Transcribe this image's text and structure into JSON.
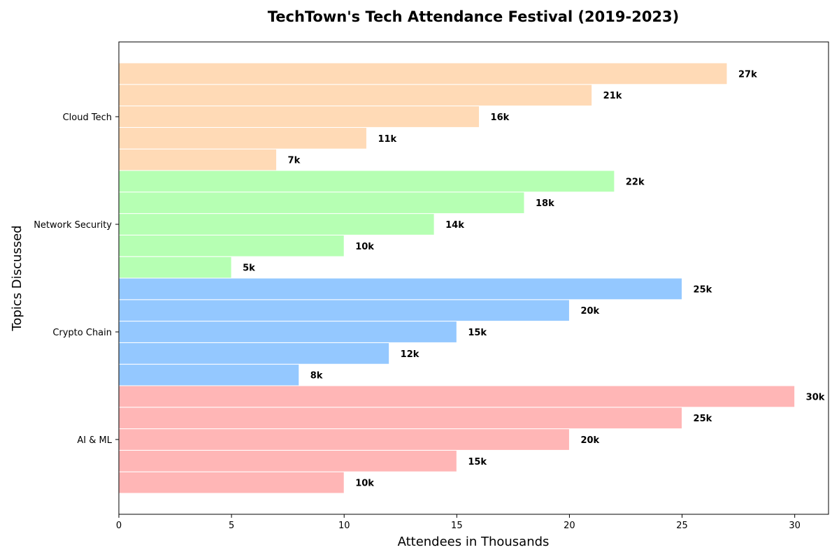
{
  "chart_data": {
    "type": "bar",
    "orientation": "horizontal",
    "title": "TechTown's Tech Attendance Festival (2019-2023)",
    "xlabel": "Attendees in Thousands",
    "ylabel": "Topics Discussed",
    "xlim": [
      0,
      31.5
    ],
    "x_ticks": [
      0,
      5,
      10,
      15,
      20,
      25,
      30
    ],
    "grid": false,
    "legend": "none",
    "categories": [
      "AI & ML",
      "Crypto Chain",
      "Network Security",
      "Cloud Tech"
    ],
    "groups": [
      {
        "category": "AI & ML",
        "color": "#FFB6B6",
        "values": [
          10,
          15,
          20,
          25,
          30
        ],
        "labels": [
          "10k",
          "15k",
          "20k",
          "25k",
          "30k"
        ]
      },
      {
        "category": "Crypto Chain",
        "color": "#94C8FF",
        "values": [
          8,
          12,
          15,
          20,
          25
        ],
        "labels": [
          "8k",
          "12k",
          "15k",
          "20k",
          "25k"
        ]
      },
      {
        "category": "Network Security",
        "color": "#B6FFB3",
        "values": [
          5,
          10,
          14,
          18,
          22
        ],
        "labels": [
          "5k",
          "10k",
          "14k",
          "18k",
          "22k"
        ]
      },
      {
        "category": "Cloud Tech",
        "color": "#FFDAB6",
        "values": [
          7,
          11,
          16,
          21,
          27
        ],
        "labels": [
          "7k",
          "11k",
          "16k",
          "21k",
          "27k"
        ]
      }
    ]
  }
}
